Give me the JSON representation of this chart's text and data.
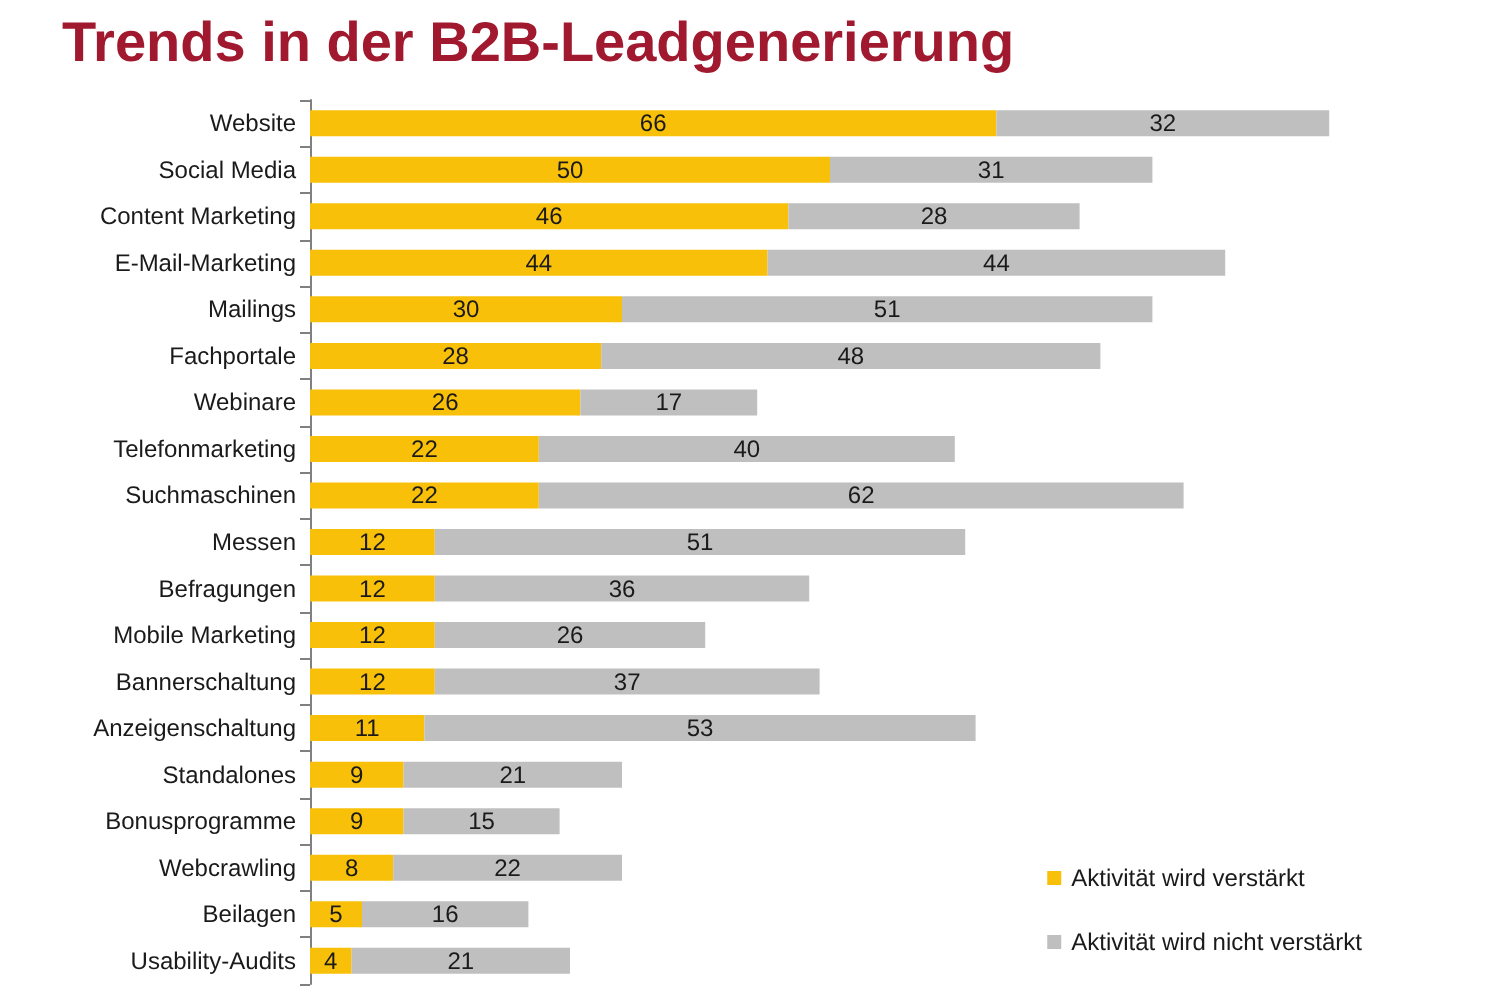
{
  "chart_data": {
    "type": "bar",
    "title": "Trends in der B2B-Leadgenerierung",
    "orientation": "horizontal",
    "stacked": true,
    "categories": [
      "Website",
      "Social Media",
      "Content Marketing",
      "E-Mail-Marketing",
      "Mailings",
      "Fachportale",
      "Webinare",
      "Telefonmarketing",
      "Suchmaschinen",
      "Messen",
      "Befragungen",
      "Mobile Marketing",
      "Bannerschaltung",
      "Anzeigenschaltung",
      "Standalones",
      "Bonusprogramme",
      "Webcrawling",
      "Beilagen",
      "Usability-Audits"
    ],
    "series": [
      {
        "name": "Aktivität wird verstärkt",
        "color": "#f9c00a",
        "values": [
          66,
          50,
          46,
          44,
          30,
          28,
          26,
          22,
          22,
          12,
          12,
          12,
          12,
          11,
          9,
          9,
          8,
          5,
          4
        ]
      },
      {
        "name": "Aktivität wird nicht verstärkt",
        "color": "#bfbfbf",
        "values": [
          32,
          31,
          28,
          44,
          51,
          48,
          17,
          40,
          62,
          51,
          36,
          26,
          37,
          53,
          21,
          15,
          22,
          16,
          21
        ]
      }
    ],
    "tick_labels": "y",
    "data_labels": true,
    "legend": "bottom right"
  }
}
